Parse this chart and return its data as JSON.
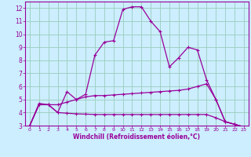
{
  "xlabel": "Windchill (Refroidissement éolien,°C)",
  "bg_color": "#cceeff",
  "grid_color": "#99ccbb",
  "line_color": "#990099",
  "xlim": [
    -0.5,
    23.5
  ],
  "ylim": [
    3,
    12.5
  ],
  "xticks": [
    0,
    1,
    2,
    3,
    4,
    5,
    6,
    7,
    8,
    9,
    10,
    11,
    12,
    13,
    14,
    15,
    16,
    17,
    18,
    19,
    20,
    21,
    22,
    23
  ],
  "yticks": [
    3,
    4,
    5,
    6,
    7,
    8,
    9,
    10,
    11,
    12
  ],
  "curve1_x": [
    0,
    1,
    2,
    3,
    4,
    5,
    6,
    7,
    8,
    9,
    10,
    11,
    12,
    13,
    14,
    15,
    16,
    17,
    18,
    19,
    20,
    21,
    22,
    23
  ],
  "curve1_y": [
    3.0,
    4.7,
    4.6,
    4.0,
    5.6,
    5.0,
    5.4,
    8.4,
    9.4,
    9.5,
    11.9,
    12.1,
    12.1,
    11.0,
    10.2,
    7.5,
    8.2,
    9.0,
    8.8,
    6.5,
    5.0,
    3.3,
    3.1,
    2.9
  ],
  "curve2_x": [
    0,
    1,
    2,
    3,
    4,
    5,
    6,
    7,
    8,
    9,
    10,
    11,
    12,
    13,
    14,
    15,
    16,
    17,
    18,
    19,
    20,
    21,
    22,
    23
  ],
  "curve2_y": [
    3.0,
    4.6,
    4.6,
    4.6,
    4.8,
    5.0,
    5.2,
    5.3,
    5.3,
    5.35,
    5.4,
    5.45,
    5.5,
    5.55,
    5.6,
    5.65,
    5.7,
    5.8,
    6.0,
    6.2,
    5.0,
    3.3,
    3.1,
    2.9
  ],
  "curve3_x": [
    0,
    1,
    2,
    3,
    4,
    5,
    6,
    7,
    8,
    9,
    10,
    11,
    12,
    13,
    14,
    15,
    16,
    17,
    18,
    19,
    20,
    21,
    22,
    23
  ],
  "curve3_y": [
    3.0,
    4.6,
    4.6,
    4.0,
    3.95,
    3.9,
    3.88,
    3.85,
    3.85,
    3.85,
    3.85,
    3.85,
    3.85,
    3.85,
    3.85,
    3.85,
    3.85,
    3.85,
    3.85,
    3.85,
    3.6,
    3.3,
    3.1,
    2.9
  ]
}
